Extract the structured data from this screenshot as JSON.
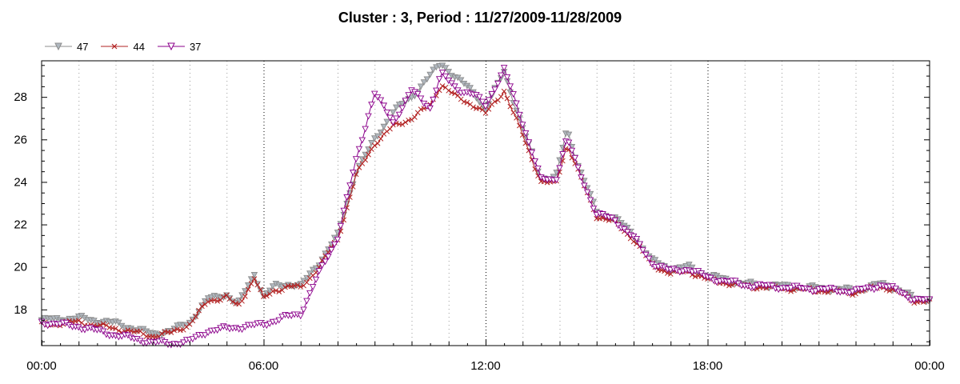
{
  "chart_data": {
    "type": "line",
    "title": "Cluster : 3, Period : 11/27/2009-11/28/2009",
    "xlabel": "",
    "ylabel": "",
    "x_ticks": [
      "00:00",
      "06:00",
      "12:00",
      "18:00",
      "00:00"
    ],
    "x_range_hours": [
      0,
      24
    ],
    "y_ticks": [
      "18",
      "20",
      "22",
      "24",
      "26",
      "28"
    ],
    "ylim": [
      16.3,
      29.7
    ],
    "grid": "vertical dotted",
    "legend_position": "top-left",
    "series": [
      {
        "name": "47",
        "color": "#8c8c8c",
        "marker": "triangle-down",
        "points": [
          [
            0,
            17.5
          ],
          [
            1,
            17.6
          ],
          [
            2,
            17.35
          ],
          [
            3,
            16.85
          ],
          [
            3.5,
            17.0
          ],
          [
            4,
            17.4
          ],
          [
            4.5,
            18.5
          ],
          [
            5,
            18.7
          ],
          [
            5.3,
            18.2
          ],
          [
            5.75,
            19.7
          ],
          [
            6,
            18.6
          ],
          [
            6.3,
            19.1
          ],
          [
            6.7,
            19.2
          ],
          [
            7,
            19.1
          ],
          [
            7.5,
            20.2
          ],
          [
            8,
            21.5
          ],
          [
            8.5,
            24.5
          ],
          [
            9,
            26.0
          ],
          [
            9.5,
            27.3
          ],
          [
            10,
            28.0
          ],
          [
            10.5,
            29.0
          ],
          [
            10.8,
            29.6
          ],
          [
            11.2,
            28.9
          ],
          [
            11.7,
            28.2
          ],
          [
            12,
            27.4
          ],
          [
            12.5,
            29.2
          ],
          [
            13,
            26.5
          ],
          [
            13.5,
            24.2
          ],
          [
            13.9,
            24.2
          ],
          [
            14.2,
            26.5
          ],
          [
            14.5,
            24.8
          ],
          [
            15,
            22.6
          ],
          [
            15.5,
            22.3
          ],
          [
            16,
            21.5
          ],
          [
            16.5,
            20.3
          ],
          [
            17,
            19.9
          ],
          [
            17.5,
            20.0
          ],
          [
            18,
            19.6
          ],
          [
            19,
            19.2
          ],
          [
            20,
            19.1
          ],
          [
            21,
            19.0
          ],
          [
            22,
            18.9
          ],
          [
            22.7,
            19.2
          ],
          [
            23.2,
            18.9
          ],
          [
            23.6,
            18.5
          ],
          [
            24,
            18.5
          ]
        ]
      },
      {
        "name": "44",
        "color": "#b22222",
        "marker": "x",
        "points": [
          [
            0,
            17.3
          ],
          [
            1,
            17.4
          ],
          [
            2,
            17.1
          ],
          [
            3,
            16.75
          ],
          [
            3.5,
            16.9
          ],
          [
            4,
            17.3
          ],
          [
            4.5,
            18.4
          ],
          [
            5,
            18.6
          ],
          [
            5.3,
            18.1
          ],
          [
            5.75,
            19.5
          ],
          [
            6,
            18.5
          ],
          [
            6.3,
            18.9
          ],
          [
            6.7,
            19.1
          ],
          [
            7,
            19.0
          ],
          [
            7.5,
            20.0
          ],
          [
            8,
            21.3
          ],
          [
            8.5,
            24.3
          ],
          [
            9,
            25.8
          ],
          [
            9.5,
            26.6
          ],
          [
            10,
            27.0
          ],
          [
            10.5,
            27.6
          ],
          [
            10.8,
            28.6
          ],
          [
            11.2,
            28.0
          ],
          [
            11.7,
            27.6
          ],
          [
            12,
            27.2
          ],
          [
            12.5,
            28.3
          ],
          [
            13,
            26.2
          ],
          [
            13.5,
            24.0
          ],
          [
            13.9,
            23.9
          ],
          [
            14.2,
            25.8
          ],
          [
            14.5,
            24.5
          ],
          [
            15,
            22.4
          ],
          [
            15.5,
            22.1
          ],
          [
            16,
            21.3
          ],
          [
            16.5,
            20.1
          ],
          [
            17,
            19.7
          ],
          [
            17.5,
            19.8
          ],
          [
            18,
            19.4
          ],
          [
            19,
            19.1
          ],
          [
            20,
            19.0
          ],
          [
            21,
            18.9
          ],
          [
            22,
            18.8
          ],
          [
            22.7,
            19.1
          ],
          [
            23.2,
            18.8
          ],
          [
            23.6,
            18.4
          ],
          [
            24,
            18.4
          ]
        ]
      },
      {
        "name": "37",
        "color": "#8b008b",
        "marker": "triangle-down",
        "points": [
          [
            0,
            17.4
          ],
          [
            1,
            17.2
          ],
          [
            2,
            16.8
          ],
          [
            3,
            16.45
          ],
          [
            3.5,
            16.4
          ],
          [
            4,
            16.5
          ],
          [
            4.5,
            17.0
          ],
          [
            5,
            17.1
          ],
          [
            5.5,
            17.2
          ],
          [
            6,
            17.3
          ],
          [
            6.5,
            17.6
          ],
          [
            7,
            17.8
          ],
          [
            7.5,
            19.7
          ],
          [
            8,
            21.4
          ],
          [
            8.5,
            25.0
          ],
          [
            9,
            28.2
          ],
          [
            9.5,
            26.8
          ],
          [
            10,
            28.3
          ],
          [
            10.5,
            27.5
          ],
          [
            10.8,
            29.1
          ],
          [
            11.2,
            28.4
          ],
          [
            11.7,
            28.1
          ],
          [
            12,
            27.6
          ],
          [
            12.5,
            29.3
          ],
          [
            13,
            26.8
          ],
          [
            13.5,
            24.1
          ],
          [
            13.9,
            24.1
          ],
          [
            14.2,
            26.1
          ],
          [
            14.5,
            24.6
          ],
          [
            15,
            22.5
          ],
          [
            15.5,
            22.2
          ],
          [
            16,
            21.4
          ],
          [
            16.5,
            20.2
          ],
          [
            17,
            19.8
          ],
          [
            17.5,
            19.9
          ],
          [
            18,
            19.5
          ],
          [
            19,
            19.15
          ],
          [
            20,
            19.05
          ],
          [
            21,
            18.95
          ],
          [
            22,
            18.85
          ],
          [
            22.7,
            19.15
          ],
          [
            23.2,
            18.85
          ],
          [
            23.6,
            18.45
          ],
          [
            24,
            18.4
          ]
        ]
      }
    ]
  }
}
